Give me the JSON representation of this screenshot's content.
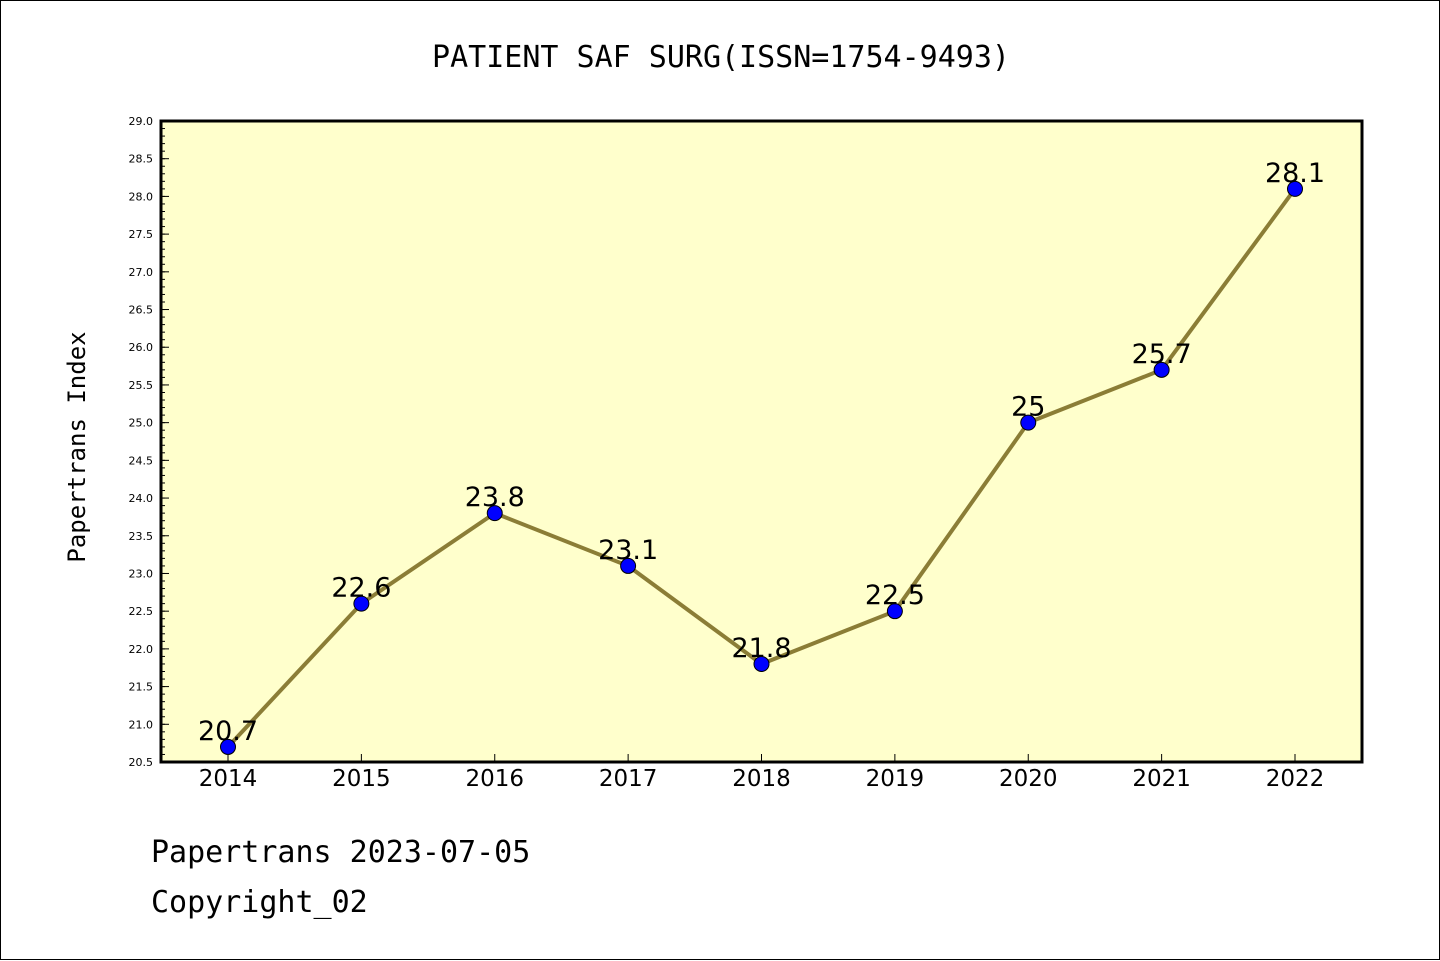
{
  "colors": {
    "plot_background": "#ffffcc",
    "line": "#8b7d36",
    "marker": "#0000ff"
  },
  "footer": {
    "line1": "Papertrans 2023-07-05",
    "line2": "Copyright_02"
  },
  "chart_data": {
    "type": "line",
    "title": "PATIENT SAF SURG(ISSN=1754-9493)",
    "xlabel": "",
    "ylabel": "Papertrans Index",
    "categories": [
      "2014",
      "2015",
      "2016",
      "2017",
      "2018",
      "2019",
      "2020",
      "2021",
      "2022"
    ],
    "series": [
      {
        "values": [
          20.7,
          22.6,
          23.8,
          23.1,
          21.8,
          22.5,
          25,
          25.7,
          28.1
        ],
        "data_labels": [
          "20.7",
          "22.6",
          "23.8",
          "23.1",
          "21.8",
          "22.5",
          "25",
          "25.7",
          "28.1"
        ]
      }
    ],
    "ylim": [
      20.5,
      29.0
    ],
    "yticks": [
      "20.5",
      "21.0",
      "21.5",
      "22.0",
      "22.5",
      "23.0",
      "23.5",
      "24.0",
      "24.5",
      "25.0",
      "25.5",
      "26.0",
      "26.5",
      "27.0",
      "27.5",
      "28.0",
      "28.5",
      "29.0"
    ],
    "grid": false,
    "legend": "none",
    "marker": "circle"
  }
}
